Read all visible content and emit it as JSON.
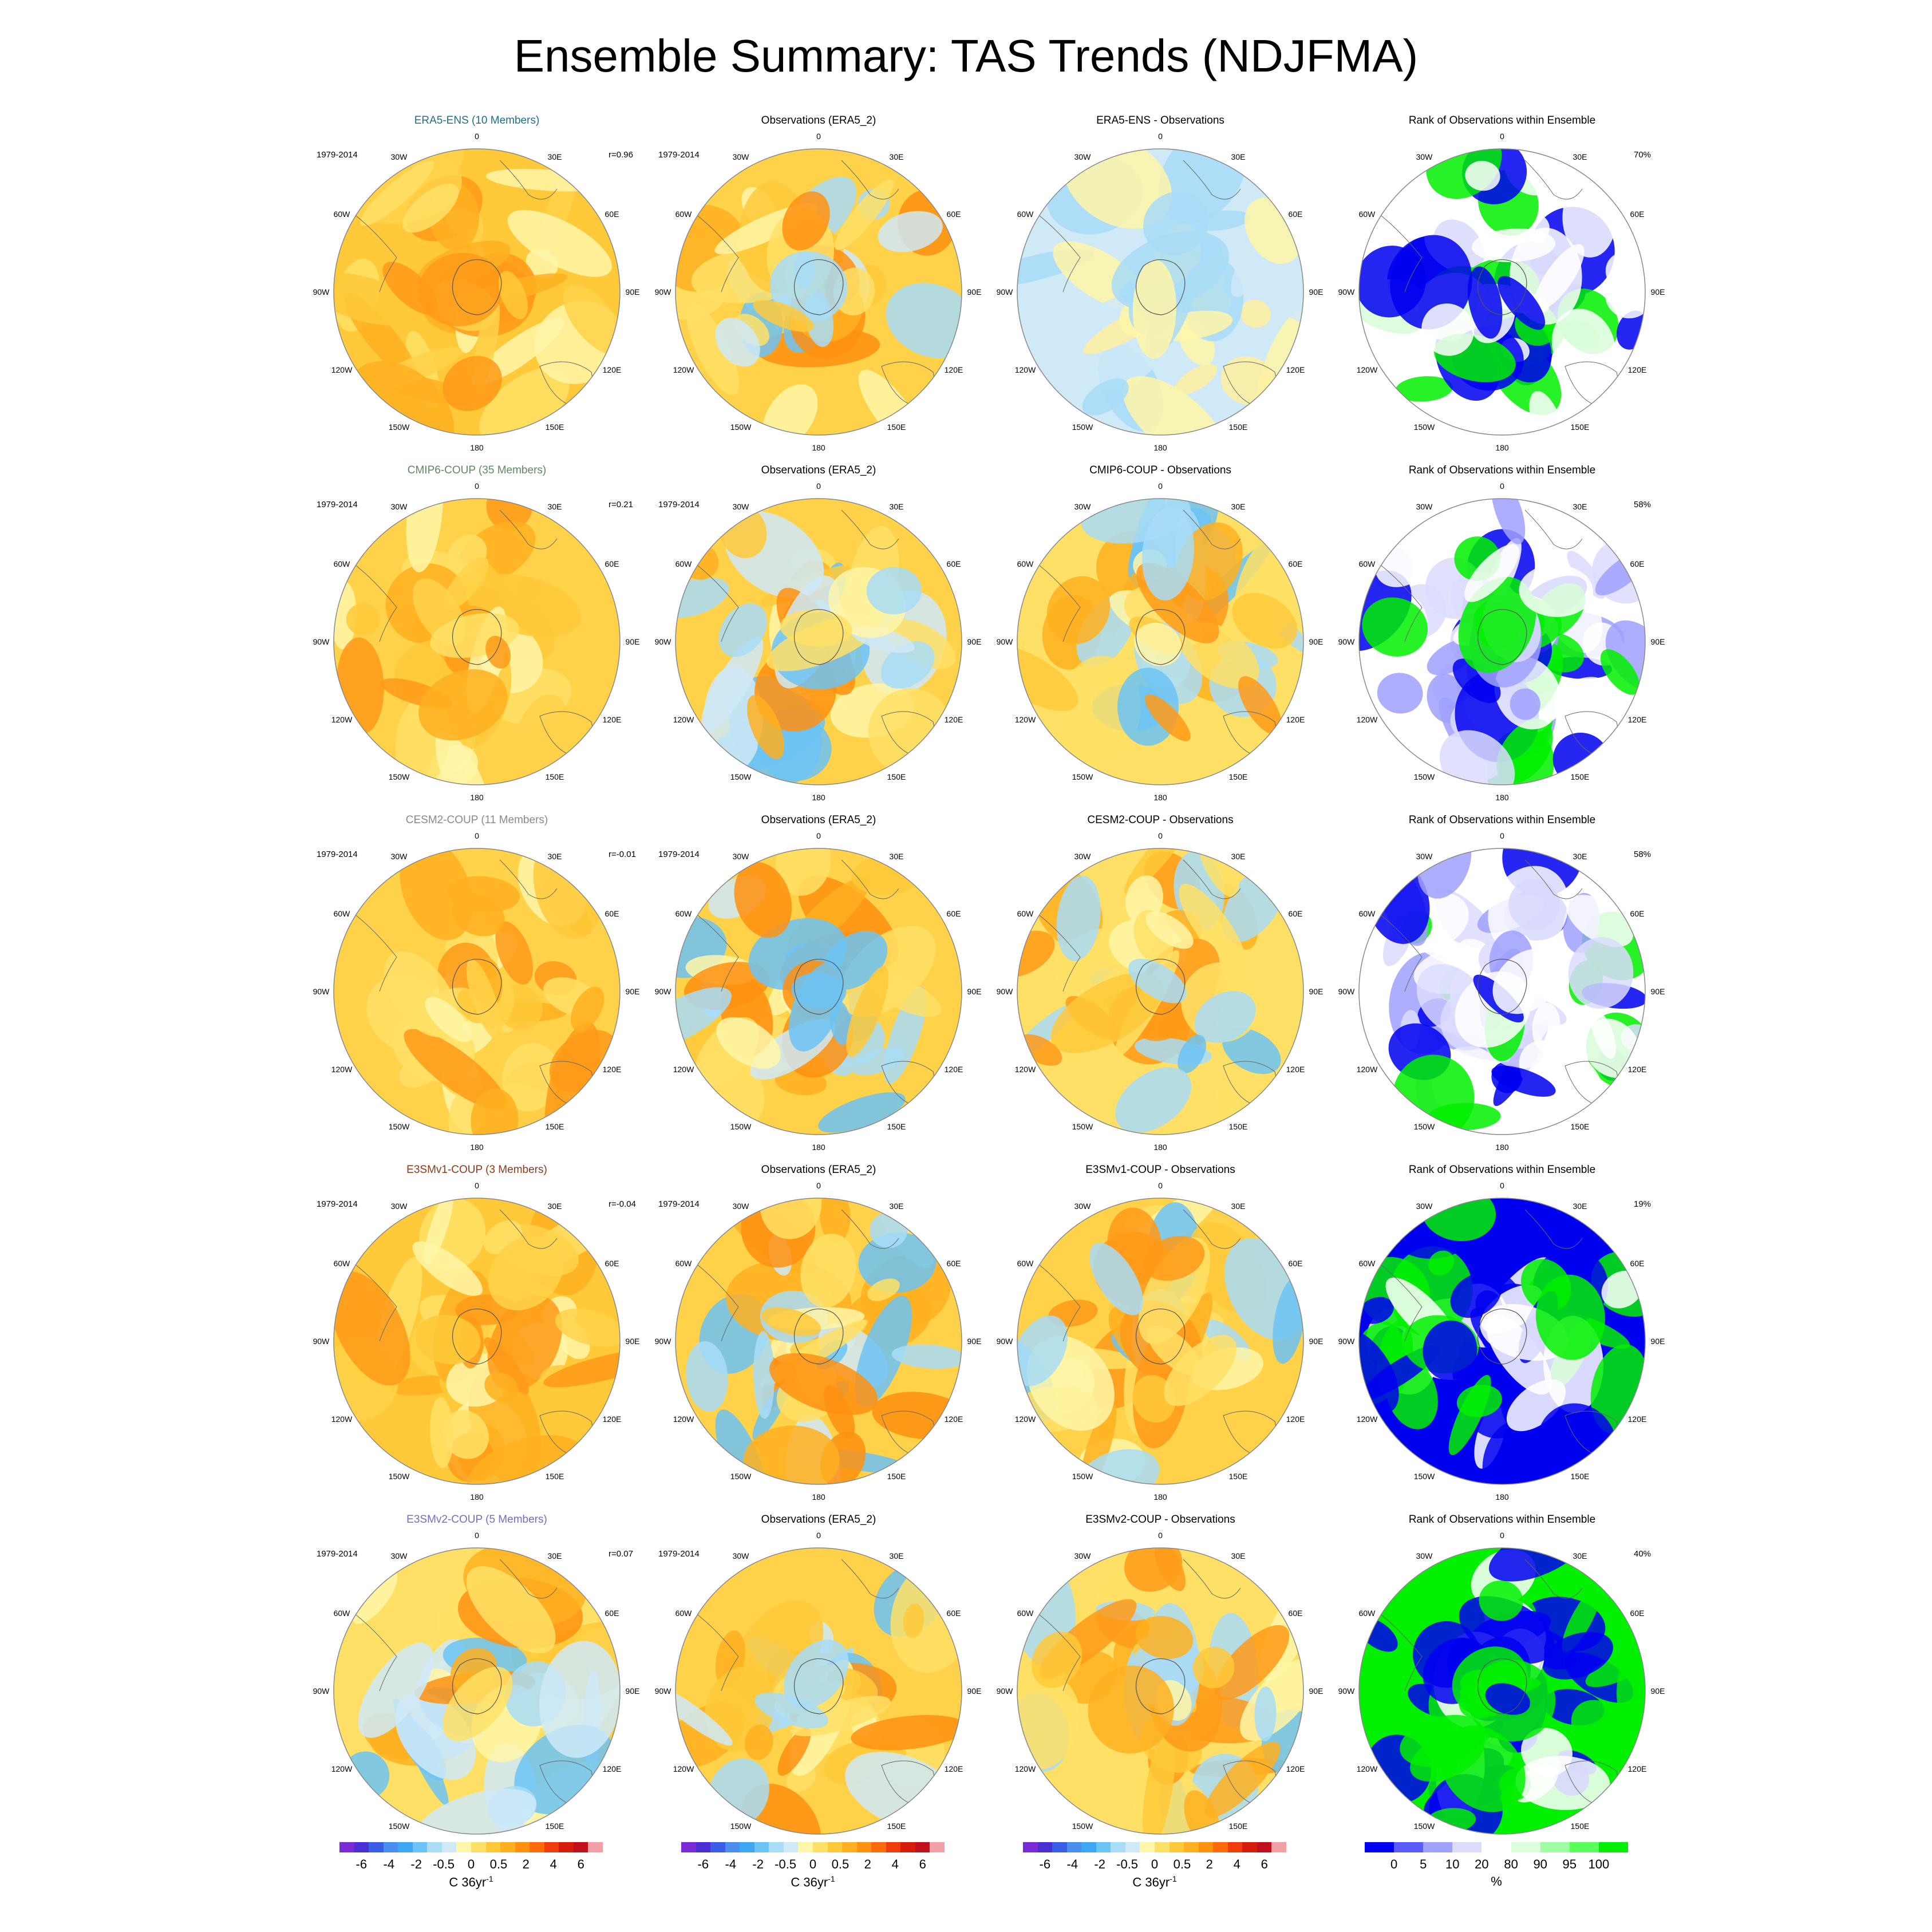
{
  "title": "Ensemble Summary: TAS Trends (NDJFMA)",
  "colors": {
    "label_era5": "#1f6e8c",
    "label_cmip6": "#5f8a5f",
    "label_cesm2": "#8a8a8a",
    "label_e3smv1": "#8b3a1a",
    "label_e3smv2": "#7b68c8"
  },
  "rows": [
    {
      "model": "ERA5-ENS (10 Members)",
      "model_color": "#1f6e8c",
      "period": "1979-2014",
      "r": "r=0.96",
      "obs_title": "Observations (ERA5_2)",
      "obs_period": "1979-2014",
      "diff_title": "ERA5-ENS - Observations",
      "rank_title": "Rank of Observations within Ensemble",
      "rank_pct": "70%"
    },
    {
      "model": "CMIP6-COUP (35 Members)",
      "model_color": "#5f8a5f",
      "period": "1979-2014",
      "r": "r=0.21",
      "obs_title": "Observations (ERA5_2)",
      "obs_period": "1979-2014",
      "diff_title": "CMIP6-COUP - Observations",
      "rank_title": "Rank of Observations within Ensemble",
      "rank_pct": "58%"
    },
    {
      "model": "CESM2-COUP (11 Members)",
      "model_color": "#8a8a8a",
      "period": "1979-2014",
      "r": "r=-0.01",
      "obs_title": "Observations (ERA5_2)",
      "obs_period": "1979-2014",
      "diff_title": "CESM2-COUP - Observations",
      "rank_title": "Rank of Observations within Ensemble",
      "rank_pct": "58%"
    },
    {
      "model": "E3SMv1-COUP (3 Members)",
      "model_color": "#8b3a1a",
      "period": "1979-2014",
      "r": "r=-0.04",
      "obs_title": "Observations (ERA5_2)",
      "obs_period": "1979-2014",
      "diff_title": "E3SMv1-COUP - Observations",
      "rank_title": "Rank of Observations within Ensemble",
      "rank_pct": "19%"
    },
    {
      "model": "E3SMv2-COUP (5 Members)",
      "model_color": "#7b68c8",
      "period": "1979-2014",
      "r": "r=0.07",
      "obs_title": "Observations (ERA5_2)",
      "obs_period": "1979-2014",
      "diff_title": "E3SMv2-COUP - Observations",
      "rank_title": "Rank of Observations within Ensemble",
      "rank_pct": "40%"
    }
  ],
  "lon_labels": [
    "0",
    "30E",
    "60E",
    "90E",
    "120E",
    "150E",
    "180",
    "150W",
    "120W",
    "90W",
    "60W",
    "30W"
  ],
  "colorbar_trend": {
    "ticks": [
      "-6",
      "-4",
      "-2",
      "-0.5",
      "0",
      "0.5",
      "2",
      "4",
      "6"
    ],
    "unit": "C 36yr",
    "unit_sup": "-1",
    "colors": [
      "#7a2bd6",
      "#4b2fd6",
      "#3a5fe6",
      "#4a8ef0",
      "#3fa6f2",
      "#6cc3f5",
      "#a8dcf7",
      "#cfe9f7",
      "#fff6a8",
      "#ffe066",
      "#ffc93a",
      "#ffb020",
      "#ff9010",
      "#ff6a0a",
      "#f03c0a",
      "#d81c0c",
      "#c0101c",
      "#f2a0a8"
    ]
  },
  "colorbar_rank": {
    "ticks": [
      "0",
      "5",
      "10",
      "20",
      "80",
      "90",
      "95",
      "100"
    ],
    "unit": "%",
    "colors": [
      "#0000f0",
      "#5a5aff",
      "#a0a0ff",
      "#dcdcff",
      "#ffffff",
      "#dcffdc",
      "#a0ffa0",
      "#5aff5a",
      "#00f000"
    ]
  }
}
